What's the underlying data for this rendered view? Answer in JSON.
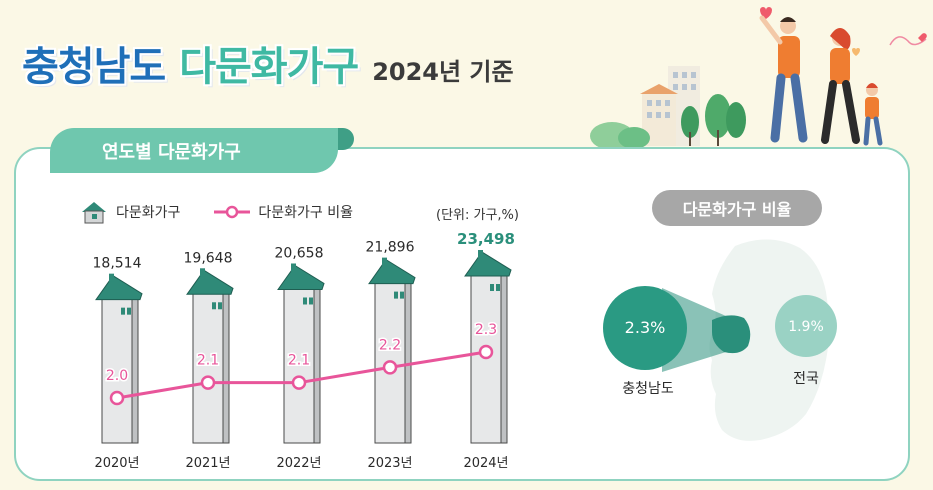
{
  "header": {
    "title_part1": "충청남도",
    "title_part2": "다문화가구",
    "title_part3": "2024년 기준"
  },
  "section": {
    "tab_label": "연도별 다문화가구",
    "unit_label": "(단위: 가구,%)"
  },
  "legend": {
    "households": "다문화가구",
    "ratio": "다문화가구 비율"
  },
  "chart_data": [
    {
      "type": "bar",
      "title": "연도별 다문화가구",
      "categories": [
        "2020년",
        "2021년",
        "2022년",
        "2023년",
        "2024년"
      ],
      "category_labels": [
        "2020년",
        "2021년",
        "2022년",
        "2023년",
        "2024년"
      ],
      "series": [
        {
          "name": "다문화가구",
          "values": [
            18514,
            19648,
            20658,
            21896,
            23498
          ],
          "labels": [
            "18,514",
            "19,648",
            "20,658",
            "21,896",
            "23,498"
          ]
        },
        {
          "name": "다문화가구 비율",
          "type": "line",
          "values": [
            2.0,
            2.1,
            2.1,
            2.2,
            2.3
          ],
          "labels": [
            "2.0",
            "2.1",
            "2.1",
            "2.2",
            "2.3"
          ]
        }
      ],
      "unit": "(단위: 가구,%)",
      "legend_position": "top-left",
      "grid": false,
      "colors": {
        "building": "#c9cbcc",
        "roof": "#2f8a78",
        "line": "#e8559a",
        "highlight": "#2a8f7b"
      }
    },
    {
      "type": "bubble-comparison",
      "title": "다문화가구 비율",
      "series": [
        {
          "name": "충청남도",
          "value": 2.3,
          "label": "2.3%"
        },
        {
          "name": "전국",
          "value": 1.9,
          "label": "1.9%"
        }
      ],
      "colors": {
        "region": "#2a9a83",
        "nation": "#9ad2c4"
      }
    }
  ],
  "ratio_card": {
    "title": "다문화가구 비율",
    "region_label": "충청남도",
    "nation_label": "전국"
  },
  "colors": {
    "background": "#fbf8e6",
    "title_blue": "#1f6fb8",
    "title_green": "#3fb9a3",
    "panel_border": "#8fd3c0",
    "tab_fill": "#6fc7ae"
  }
}
